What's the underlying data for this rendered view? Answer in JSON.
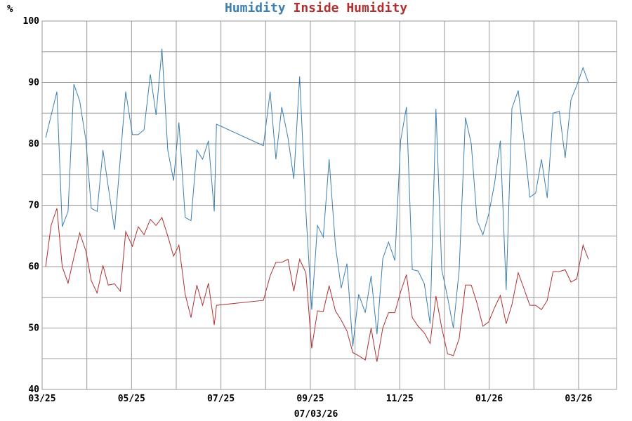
{
  "chart_data": {
    "type": "line",
    "title_parts": [
      "Humidity",
      "Inside Humidity"
    ],
    "ylabel": "%",
    "xlabel": "07/03/26",
    "ylim": [
      40,
      100
    ],
    "xlim": [
      0,
      12.85
    ],
    "y_ticks": [
      40,
      50,
      60,
      70,
      80,
      90,
      100
    ],
    "x_ticks": [
      {
        "label": "03/25",
        "pos": 0
      },
      {
        "label": "05/25",
        "pos": 2
      },
      {
        "label": "07/25",
        "pos": 4
      },
      {
        "label": "09/25",
        "pos": 6
      },
      {
        "label": "11/25",
        "pos": 8
      },
      {
        "label": "01/26",
        "pos": 10
      },
      {
        "label": "03/26",
        "pos": 12
      }
    ],
    "grid": true,
    "series": [
      {
        "name": "Humidity",
        "color": "#3c7fb1",
        "points": [
          [
            0.08,
            81
          ],
          [
            0.33,
            88.5
          ],
          [
            0.45,
            66.5
          ],
          [
            0.58,
            69
          ],
          [
            0.71,
            89.7
          ],
          [
            0.84,
            87
          ],
          [
            0.98,
            80.5
          ],
          [
            1.1,
            69.5
          ],
          [
            1.23,
            69
          ],
          [
            1.36,
            79
          ],
          [
            1.48,
            73
          ],
          [
            1.62,
            66
          ],
          [
            1.87,
            88.5
          ],
          [
            2.02,
            81.5
          ],
          [
            2.15,
            81.5
          ],
          [
            2.28,
            82.3
          ],
          [
            2.42,
            91.3
          ],
          [
            2.55,
            84.7
          ],
          [
            2.68,
            95.5
          ],
          [
            2.81,
            79
          ],
          [
            2.94,
            74
          ],
          [
            3.06,
            83.5
          ],
          [
            3.2,
            68
          ],
          [
            3.33,
            67.5
          ],
          [
            3.46,
            79
          ],
          [
            3.59,
            77.5
          ],
          [
            3.72,
            80.5
          ],
          [
            3.85,
            69
          ],
          [
            3.9,
            83.2
          ],
          [
            4.95,
            79.7
          ],
          [
            5.1,
            88.5
          ],
          [
            5.23,
            77.5
          ],
          [
            5.36,
            86
          ],
          [
            5.5,
            81
          ],
          [
            5.63,
            74.3
          ],
          [
            5.76,
            91
          ],
          [
            5.9,
            69
          ],
          [
            6.03,
            53
          ],
          [
            6.16,
            66.7
          ],
          [
            6.29,
            64.8
          ],
          [
            6.42,
            77.5
          ],
          [
            6.56,
            63.5
          ],
          [
            6.69,
            56.5
          ],
          [
            6.82,
            60.5
          ],
          [
            6.95,
            47
          ],
          [
            7.08,
            55.5
          ],
          [
            7.23,
            52.5
          ],
          [
            7.36,
            58.5
          ],
          [
            7.49,
            49
          ],
          [
            7.62,
            61.3
          ],
          [
            7.75,
            64
          ],
          [
            7.89,
            61
          ],
          [
            8.02,
            80.5
          ],
          [
            8.15,
            86
          ],
          [
            8.28,
            59.5
          ],
          [
            8.41,
            59.3
          ],
          [
            8.55,
            57.2
          ],
          [
            8.68,
            50.7
          ],
          [
            8.81,
            85.7
          ],
          [
            8.94,
            59.5
          ],
          [
            9.07,
            55
          ],
          [
            9.2,
            50
          ],
          [
            9.33,
            59.5
          ],
          [
            9.47,
            84.3
          ],
          [
            9.6,
            80
          ],
          [
            9.73,
            67.5
          ],
          [
            9.86,
            65.2
          ],
          [
            9.99,
            68.5
          ],
          [
            10.12,
            73.5
          ],
          [
            10.25,
            80.5
          ],
          [
            10.38,
            56.2
          ],
          [
            10.51,
            85.8
          ],
          [
            10.65,
            88.7
          ],
          [
            10.78,
            80.5
          ],
          [
            10.91,
            71.3
          ],
          [
            11.04,
            72
          ],
          [
            11.17,
            77.5
          ],
          [
            11.3,
            71.2
          ],
          [
            11.43,
            85
          ],
          [
            11.57,
            85.3
          ],
          [
            11.7,
            77.7
          ],
          [
            11.83,
            87.2
          ],
          [
            11.96,
            89.5
          ],
          [
            12.1,
            92.4
          ],
          [
            12.22,
            90
          ]
        ]
      },
      {
        "name": "Inside Humidity",
        "color": "#b03030",
        "points": [
          [
            0.08,
            60
          ],
          [
            0.2,
            66.7
          ],
          [
            0.33,
            69.5
          ],
          [
            0.45,
            60
          ],
          [
            0.58,
            57.3
          ],
          [
            0.71,
            61.5
          ],
          [
            0.84,
            65.5
          ],
          [
            0.98,
            62.5
          ],
          [
            1.1,
            57.7
          ],
          [
            1.23,
            55.7
          ],
          [
            1.36,
            60.2
          ],
          [
            1.48,
            57
          ],
          [
            1.62,
            57.2
          ],
          [
            1.75,
            56
          ],
          [
            1.87,
            65.7
          ],
          [
            2.02,
            63.3
          ],
          [
            2.15,
            66.5
          ],
          [
            2.28,
            65.2
          ],
          [
            2.42,
            67.7
          ],
          [
            2.55,
            66.7
          ],
          [
            2.68,
            68
          ],
          [
            2.81,
            65
          ],
          [
            2.94,
            61.7
          ],
          [
            3.06,
            63.5
          ],
          [
            3.2,
            55.5
          ],
          [
            3.33,
            51.7
          ],
          [
            3.46,
            57
          ],
          [
            3.59,
            53.7
          ],
          [
            3.72,
            57.3
          ],
          [
            3.85,
            50.5
          ],
          [
            3.9,
            53.7
          ],
          [
            4.95,
            54.5
          ],
          [
            5.1,
            58.5
          ],
          [
            5.23,
            60.7
          ],
          [
            5.36,
            60.7
          ],
          [
            5.5,
            61.2
          ],
          [
            5.63,
            56
          ],
          [
            5.76,
            61.2
          ],
          [
            5.9,
            59
          ],
          [
            6.03,
            46.7
          ],
          [
            6.16,
            52.8
          ],
          [
            6.29,
            52.7
          ],
          [
            6.42,
            56.9
          ],
          [
            6.56,
            52.8
          ],
          [
            6.69,
            51.3
          ],
          [
            6.82,
            49.5
          ],
          [
            6.95,
            46
          ],
          [
            7.08,
            45.5
          ],
          [
            7.23,
            44.8
          ],
          [
            7.36,
            50
          ],
          [
            7.49,
            44.5
          ],
          [
            7.62,
            50
          ],
          [
            7.75,
            52.5
          ],
          [
            7.89,
            52.5
          ],
          [
            8.02,
            55.9
          ],
          [
            8.15,
            58.7
          ],
          [
            8.28,
            51.7
          ],
          [
            8.41,
            50.3
          ],
          [
            8.55,
            49.2
          ],
          [
            8.68,
            47.5
          ],
          [
            8.81,
            55.2
          ],
          [
            8.94,
            50
          ],
          [
            9.07,
            45.8
          ],
          [
            9.2,
            45.5
          ],
          [
            9.33,
            48.3
          ],
          [
            9.47,
            57
          ],
          [
            9.6,
            57
          ],
          [
            9.73,
            54
          ],
          [
            9.86,
            50.3
          ],
          [
            9.99,
            51
          ],
          [
            10.12,
            53.3
          ],
          [
            10.25,
            55.3
          ],
          [
            10.38,
            50.7
          ],
          [
            10.51,
            53.8
          ],
          [
            10.65,
            59
          ],
          [
            10.78,
            56.4
          ],
          [
            10.91,
            53.7
          ],
          [
            11.04,
            53.7
          ],
          [
            11.17,
            53
          ],
          [
            11.3,
            54.5
          ],
          [
            11.43,
            59.2
          ],
          [
            11.57,
            59.2
          ],
          [
            11.7,
            59.5
          ],
          [
            11.83,
            57.5
          ],
          [
            11.96,
            58
          ],
          [
            12.1,
            63.5
          ],
          [
            12.22,
            61.2
          ]
        ]
      }
    ]
  }
}
